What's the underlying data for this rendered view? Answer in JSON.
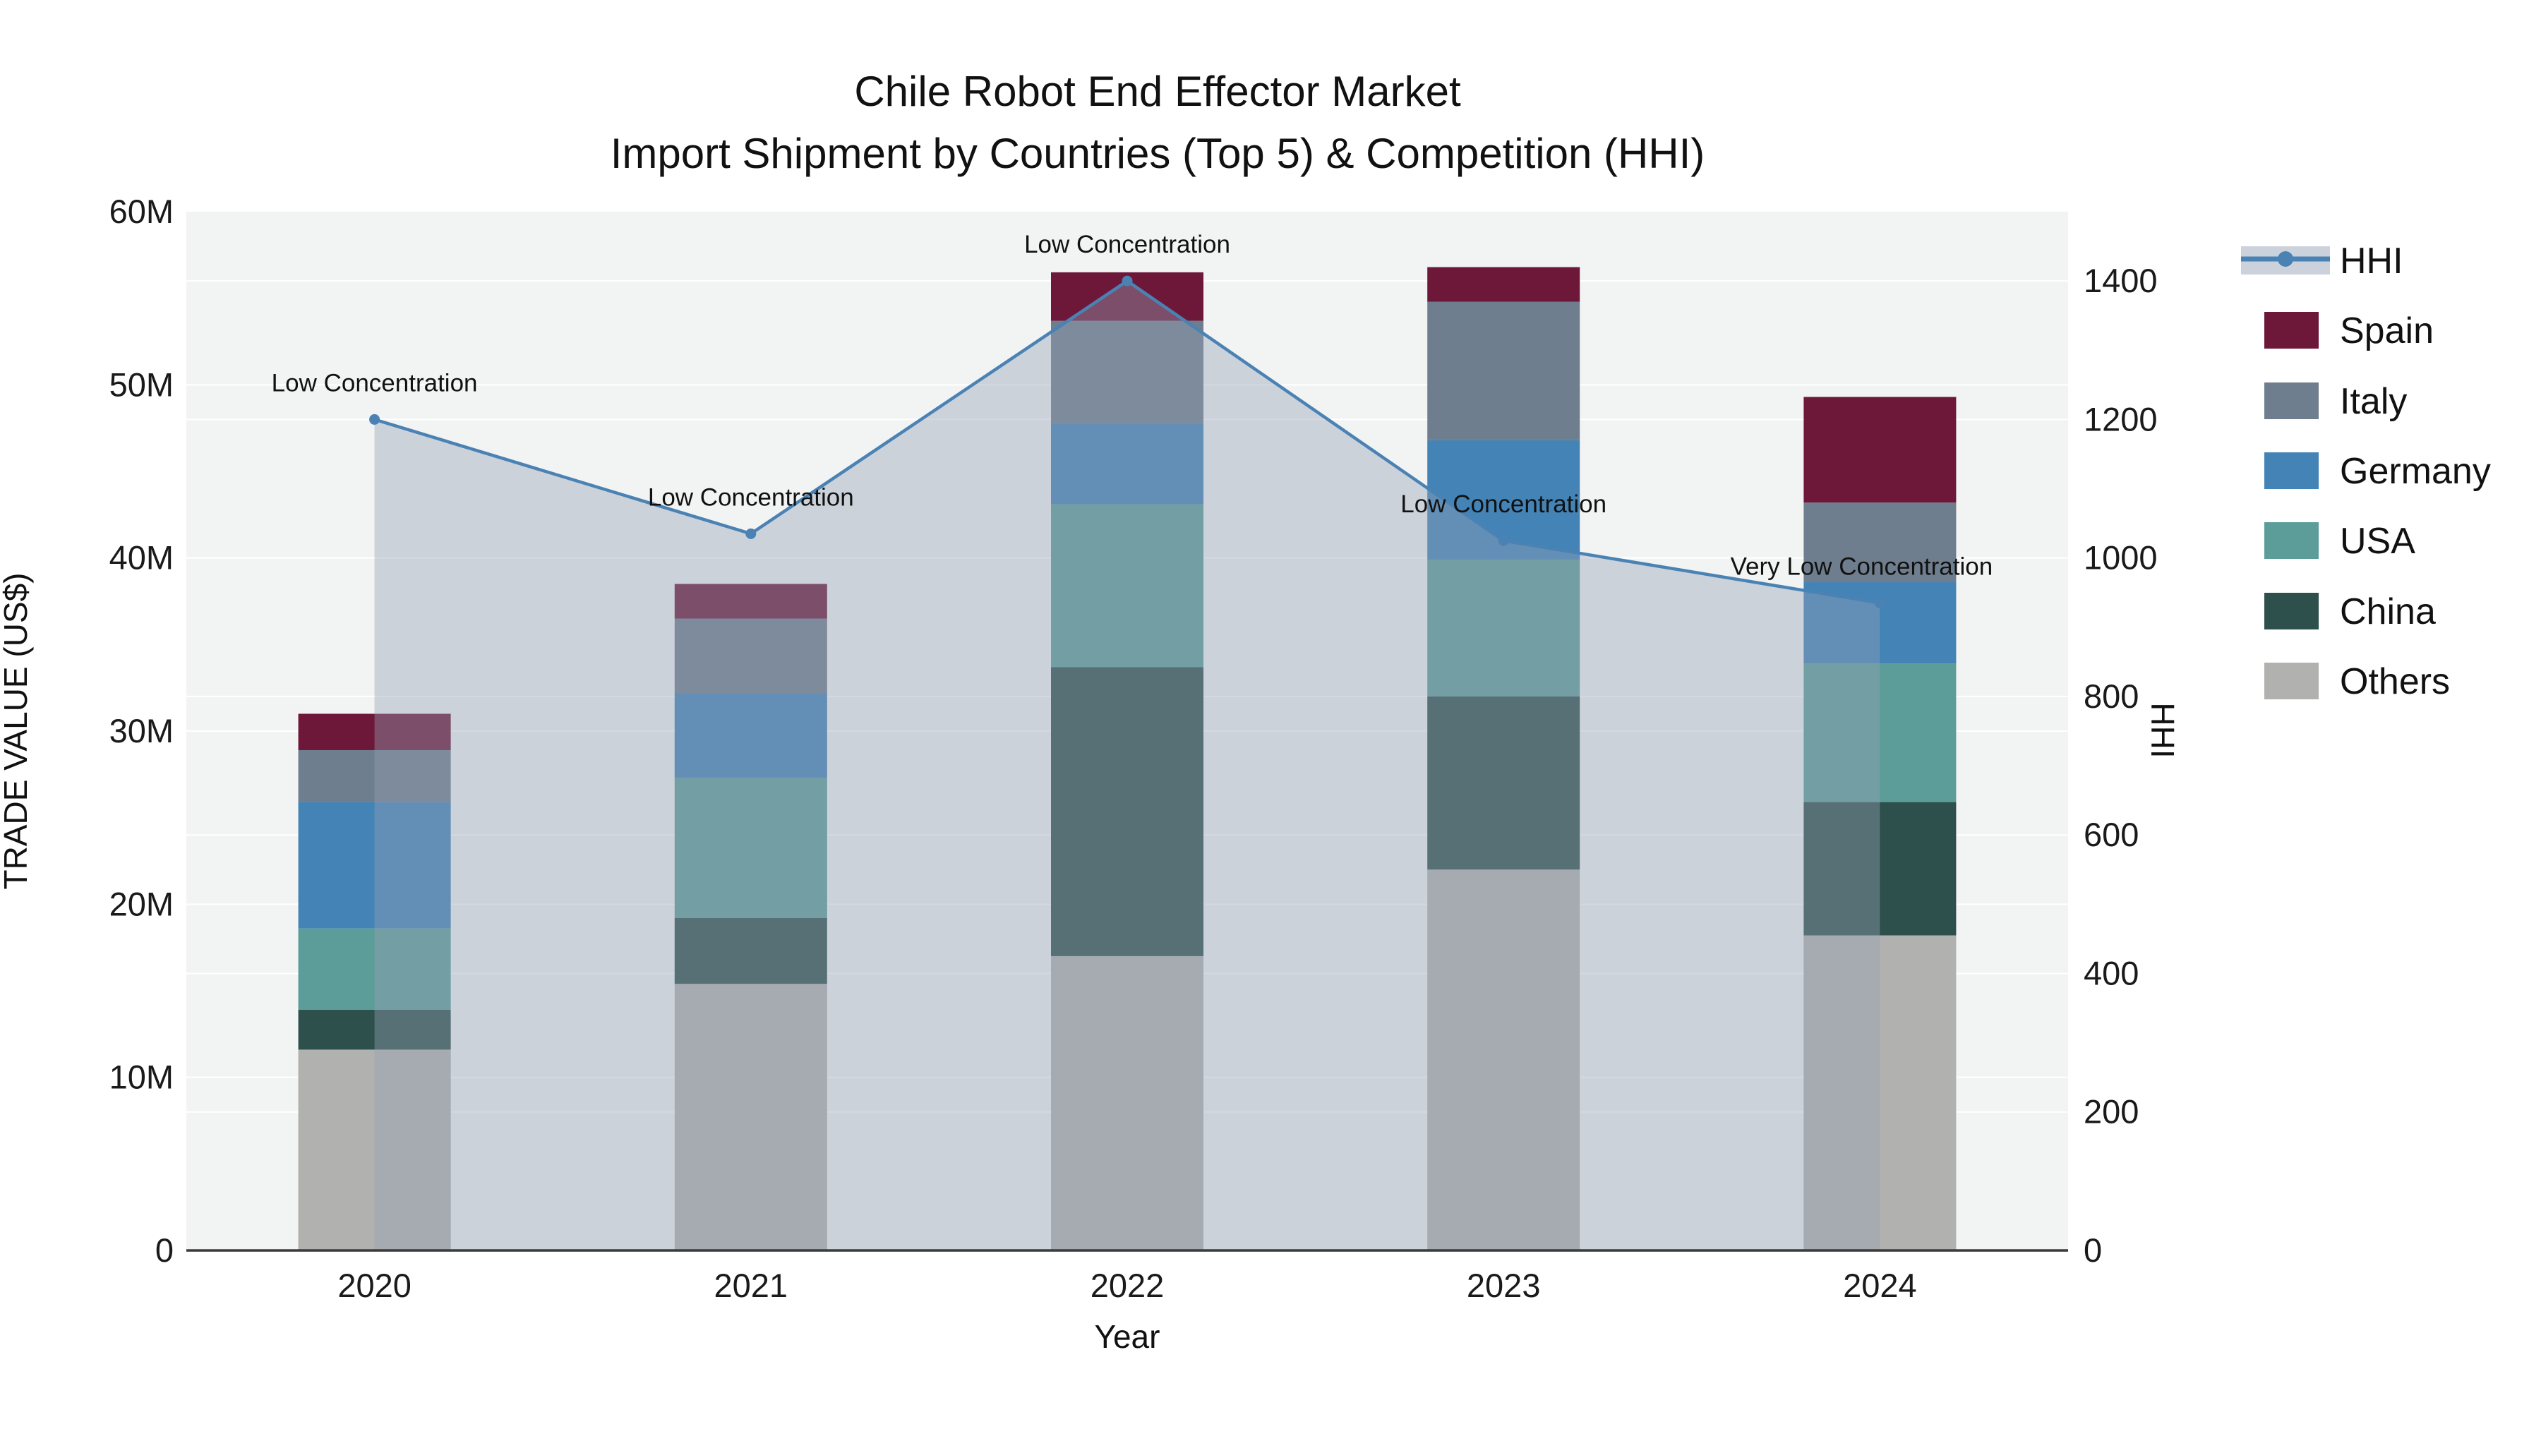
{
  "title": {
    "line1": "Chile Robot End Effector Market",
    "line2": "Import Shipment by Countries (Top 5) & Competition (HHI)"
  },
  "chart_data": {
    "type": "combo: stacked-bar + line-area (dual axis)",
    "categories": [
      "2020",
      "2021",
      "2022",
      "2023",
      "2024"
    ],
    "values_unit": "USD millions",
    "series": [
      {
        "name": "Others",
        "color": "#b1b2af",
        "values": [
          11.6,
          15.4,
          17.0,
          22.0,
          18.2
        ]
      },
      {
        "name": "China",
        "color": "#2d504c",
        "values": [
          2.3,
          3.8,
          16.7,
          10.0,
          7.7
        ]
      },
      {
        "name": "USA",
        "color": "#5c9d9a",
        "values": [
          4.7,
          8.1,
          9.4,
          7.9,
          8.0
        ]
      },
      {
        "name": "Germany",
        "color": "#4383b6",
        "values": [
          7.3,
          4.9,
          4.7,
          6.9,
          4.7
        ]
      },
      {
        "name": "Italy",
        "color": "#6f7e8e",
        "values": [
          3.0,
          4.3,
          5.9,
          8.0,
          4.6
        ]
      },
      {
        "name": "Spain",
        "color": "#6d1839",
        "values": [
          2.1,
          2.0,
          2.8,
          2.0,
          6.1
        ]
      }
    ],
    "line_series": {
      "name": "HHI",
      "color": "#4a82b4",
      "area_color": "#93a1b5",
      "area_opacity": 0.4,
      "values": [
        1200,
        1035,
        1400,
        1025,
        935
      ]
    },
    "annotations": [
      {
        "category": "2020",
        "text": "Low Concentration"
      },
      {
        "category": "2021",
        "text": "Low Concentration"
      },
      {
        "category": "2022",
        "text": "Low Concentration"
      },
      {
        "category": "2023",
        "text": "Low Concentration"
      },
      {
        "category": "2024",
        "text": "Very Low Concentration"
      }
    ],
    "left_axis": {
      "label": "TRADE VALUE (US$)",
      "tick_labels": [
        "0",
        "10M",
        "20M",
        "30M",
        "40M",
        "50M",
        "60M"
      ],
      "tick_values": [
        0,
        10,
        20,
        30,
        40,
        50,
        60
      ],
      "max": 60
    },
    "right_axis": {
      "label": "HHI",
      "tick_labels": [
        "0",
        "200",
        "400",
        "600",
        "800",
        "1000",
        "1200",
        "1400"
      ],
      "tick_values": [
        0,
        200,
        400,
        600,
        800,
        1000,
        1200,
        1400
      ],
      "max": 1500
    },
    "x_axis": {
      "label": "Year"
    },
    "legend": {
      "entries": [
        "HHI",
        "Spain",
        "Italy",
        "Germany",
        "USA",
        "China",
        "Others"
      ]
    },
    "plot_background": "#f2f3f3",
    "gridline_color": "#ffffff"
  }
}
